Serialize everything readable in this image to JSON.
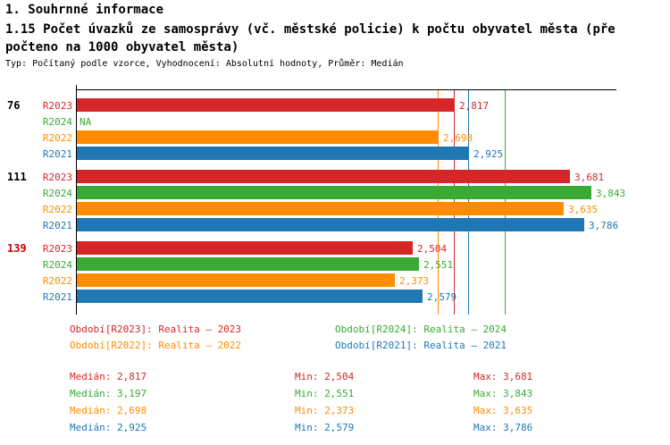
{
  "header": {
    "section_title": "1. Souhrnné informace",
    "chart_title": "1.15 Počet úvazků ze samosprávy (vč. městské policie) k počtu obyvatel města (přepočteno na 1000 obyvatel města)",
    "subtitle": "Typ: Počítaný podle vzorce, Vyhodnocení: Absolutní hodnoty, Průměr: Medián"
  },
  "chart_data": {
    "type": "bar",
    "orientation": "horizontal",
    "value_axis_range": [
      0,
      4.0
    ],
    "average_method": "Medián",
    "series_colors": {
      "R2023": "#d62728",
      "R2024": "#3aaa35",
      "R2022": "#ff8c00",
      "R2021": "#1f77b4"
    },
    "groups": [
      {
        "label": "76",
        "label_color": "#000000",
        "bars": [
          {
            "series": "R2023",
            "value": 2.817,
            "display": "2,817"
          },
          {
            "series": "R2024",
            "value": null,
            "display": "NA"
          },
          {
            "series": "R2022",
            "value": 2.698,
            "display": "2,698"
          },
          {
            "series": "R2021",
            "value": 2.925,
            "display": "2,925"
          }
        ]
      },
      {
        "label": "111",
        "label_color": "#000000",
        "bars": [
          {
            "series": "R2023",
            "value": 3.681,
            "display": "3,681"
          },
          {
            "series": "R2024",
            "value": 3.843,
            "display": "3,843"
          },
          {
            "series": "R2022",
            "value": 3.635,
            "display": "3,635"
          },
          {
            "series": "R2021",
            "value": 3.786,
            "display": "3,786"
          }
        ]
      },
      {
        "label": "139",
        "label_color": "#cc0000",
        "bars": [
          {
            "series": "R2023",
            "value": 2.504,
            "display": "2,504"
          },
          {
            "series": "R2024",
            "value": 2.551,
            "display": "2,551"
          },
          {
            "series": "R2022",
            "value": 2.373,
            "display": "2,373"
          },
          {
            "series": "R2021",
            "value": 2.579,
            "display": "2,579"
          }
        ]
      }
    ],
    "median_lines": [
      {
        "series": "R2022",
        "value": 2.698
      },
      {
        "series": "R2023",
        "value": 2.817
      },
      {
        "series": "R2021",
        "value": 2.925
      },
      {
        "series": "R2024",
        "value": 3.197
      }
    ]
  },
  "legend": [
    {
      "series": "R2023",
      "label": "Období[R2023]: Realita – 2023"
    },
    {
      "series": "R2024",
      "label": "Období[R2024]: Realita – 2024"
    },
    {
      "series": "R2022",
      "label": "Období[R2022]: Realita – 2022"
    },
    {
      "series": "R2021",
      "label": "Období[R2021]: Realita – 2021"
    }
  ],
  "stats": {
    "median_label": "Medián",
    "min_label": "Min",
    "max_label": "Max",
    "rows": [
      {
        "series": "R2023",
        "median": "2,817",
        "min": "2,504",
        "max": "3,681"
      },
      {
        "series": "R2024",
        "median": "3,197",
        "min": "2,551",
        "max": "3,843"
      },
      {
        "series": "R2022",
        "median": "2,698",
        "min": "2,373",
        "max": "3,635"
      },
      {
        "series": "R2021",
        "median": "2,925",
        "min": "2,579",
        "max": "3,786"
      }
    ]
  }
}
